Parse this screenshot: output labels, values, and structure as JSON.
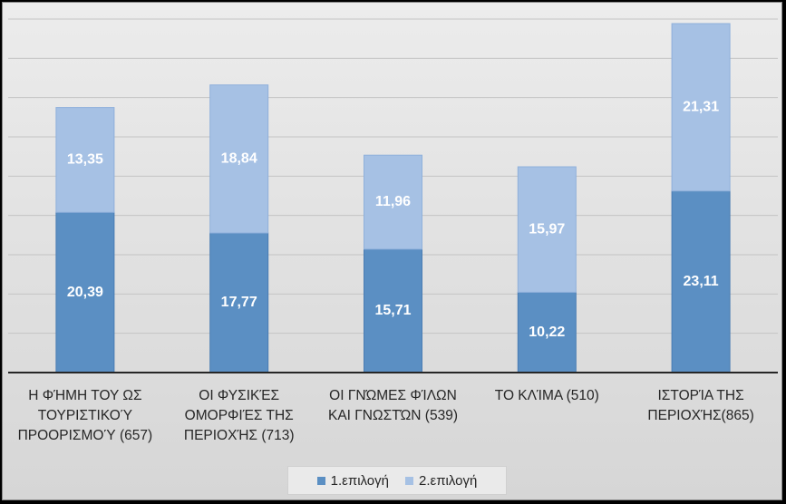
{
  "chart_data": {
    "type": "bar",
    "stacked": true,
    "categories": [
      [
        "Η ΦΉΜΗ ΤΟΥ ΩΣ",
        "ΤΟΥΡΙΣΤΙΚΟΎ",
        "ΠΡΟΟΡΙΣΜΟΎ (657)"
      ],
      [
        "ΟΙ ΦΥΣΙΚΈΣ",
        "ΟΜΟΡΦΙΈΣ ΤΗΣ",
        "ΠΕΡΙΟΧΉΣ (713)"
      ],
      [
        "ΟΙ ΓΝΏΜΕΣ ΦΊΛΩΝ",
        "ΚΑΙ ΓΝΩΣΤΏΝ (539)"
      ],
      [
        "ΤΟ ΚΛΊΜΑ (510)"
      ],
      [
        "ΙΣΤΟΡΊΑ ΤΗΣ",
        "ΠΕΡΙΟΧΉΣ(865)"
      ]
    ],
    "series": [
      {
        "name": "1.επιλογή",
        "values": [
          20.39,
          17.77,
          15.71,
          10.22,
          23.11
        ],
        "labels": [
          "20,39",
          "17,77",
          "15,71",
          "10,22",
          "23,11"
        ],
        "color": "#5b8fc3"
      },
      {
        "name": "2.επιλογή",
        "values": [
          13.35,
          18.84,
          11.96,
          15.97,
          21.31
        ],
        "labels": [
          "13,35",
          "18,84",
          "11,96",
          "15,97",
          "21,31"
        ],
        "color": "#a6c1e4"
      }
    ],
    "ylim": [
      0,
      45
    ],
    "grid": true,
    "legend": "bottom"
  }
}
